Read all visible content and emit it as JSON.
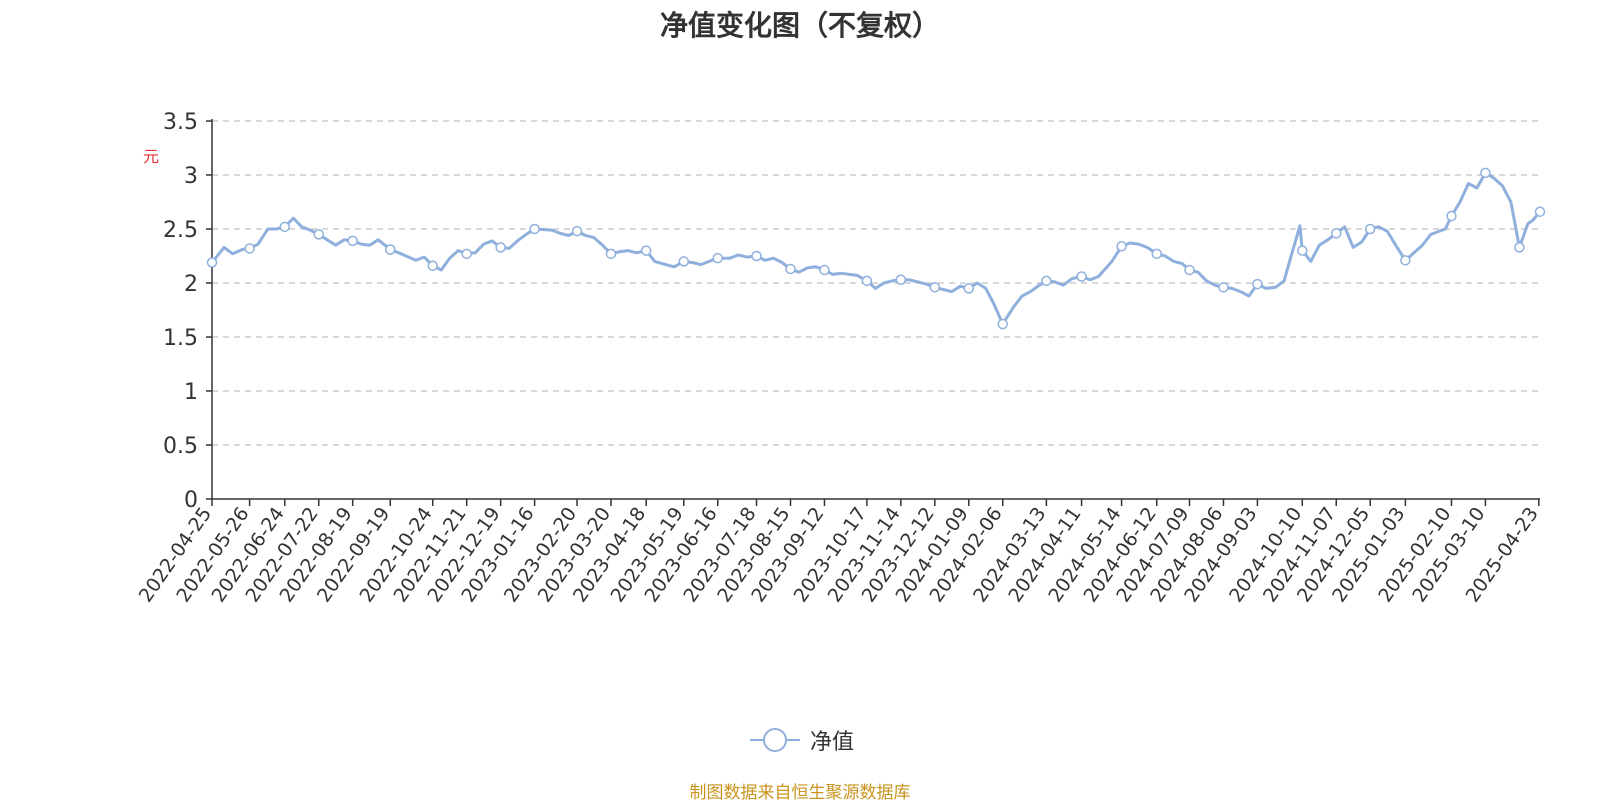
{
  "chart_data": {
    "type": "line",
    "title": "净值变化图（不复权）",
    "ylabel": "元",
    "xlabel": "",
    "ylim": [
      0,
      3.5
    ],
    "yticks": [
      "0",
      "0.5",
      "1",
      "1.5",
      "2",
      "2.5",
      "3",
      "3.5"
    ],
    "grid": "horizontal-dashed",
    "legend_position": "bottom-center",
    "x_range": [
      "2022-04-25",
      "2025-04-24"
    ],
    "categories": [
      "2022-04-25",
      "2022-05-26",
      "2022-06-24",
      "2022-07-22",
      "2022-08-19",
      "2022-09-19",
      "2022-10-24",
      "2022-11-21",
      "2022-12-19",
      "2023-01-16",
      "2023-02-20",
      "2023-03-20",
      "2023-04-18",
      "2023-05-19",
      "2023-06-16",
      "2023-07-18",
      "2023-08-15",
      "2023-09-12",
      "2023-10-17",
      "2023-11-14",
      "2023-12-12",
      "2024-01-09",
      "2024-02-06",
      "2024-03-13",
      "2024-04-11",
      "2024-05-14",
      "2024-06-12",
      "2024-07-09",
      "2024-08-06",
      "2024-09-03",
      "2024-10-10",
      "2024-11-07",
      "2024-12-05",
      "2025-01-03",
      "2025-02-10",
      "2025-03-10",
      "2025-04-23"
    ],
    "series": [
      {
        "name": "净值",
        "color": "#8fb0dc",
        "points": [
          [
            "2022-04-25",
            2.19
          ],
          [
            "2022-05-05",
            2.33
          ],
          [
            "2022-05-12",
            2.27
          ],
          [
            "2022-05-20",
            2.31
          ],
          [
            "2022-05-26",
            2.32
          ],
          [
            "2022-06-02",
            2.36
          ],
          [
            "2022-06-10",
            2.5
          ],
          [
            "2022-06-17",
            2.5
          ],
          [
            "2022-06-24",
            2.52
          ],
          [
            "2022-07-01",
            2.6
          ],
          [
            "2022-07-08",
            2.52
          ],
          [
            "2022-07-15",
            2.49
          ],
          [
            "2022-07-22",
            2.45
          ],
          [
            "2022-07-29",
            2.4
          ],
          [
            "2022-08-05",
            2.35
          ],
          [
            "2022-08-12",
            2.4
          ],
          [
            "2022-08-19",
            2.39
          ],
          [
            "2022-08-26",
            2.36
          ],
          [
            "2022-09-02",
            2.35
          ],
          [
            "2022-09-09",
            2.4
          ],
          [
            "2022-09-19",
            2.31
          ],
          [
            "2022-09-26",
            2.28
          ],
          [
            "2022-10-10",
            2.21
          ],
          [
            "2022-10-17",
            2.24
          ],
          [
            "2022-10-24",
            2.16
          ],
          [
            "2022-10-31",
            2.12
          ],
          [
            "2022-11-07",
            2.23
          ],
          [
            "2022-11-14",
            2.3
          ],
          [
            "2022-11-21",
            2.27
          ],
          [
            "2022-11-28",
            2.28
          ],
          [
            "2022-12-05",
            2.36
          ],
          [
            "2022-12-12",
            2.39
          ],
          [
            "2022-12-19",
            2.33
          ],
          [
            "2022-12-26",
            2.32
          ],
          [
            "2023-01-03",
            2.4
          ],
          [
            "2023-01-09",
            2.45
          ],
          [
            "2023-01-16",
            2.5
          ],
          [
            "2023-01-30",
            2.49
          ],
          [
            "2023-02-06",
            2.46
          ],
          [
            "2023-02-13",
            2.44
          ],
          [
            "2023-02-20",
            2.48
          ],
          [
            "2023-02-27",
            2.44
          ],
          [
            "2023-03-06",
            2.42
          ],
          [
            "2023-03-13",
            2.35
          ],
          [
            "2023-03-20",
            2.27
          ],
          [
            "2023-03-27",
            2.29
          ],
          [
            "2023-04-03",
            2.3
          ],
          [
            "2023-04-10",
            2.28
          ],
          [
            "2023-04-18",
            2.3
          ],
          [
            "2023-04-25",
            2.2
          ],
          [
            "2023-05-04",
            2.17
          ],
          [
            "2023-05-11",
            2.15
          ],
          [
            "2023-05-19",
            2.2
          ],
          [
            "2023-05-26",
            2.19
          ],
          [
            "2023-06-02",
            2.17
          ],
          [
            "2023-06-09",
            2.2
          ],
          [
            "2023-06-16",
            2.23
          ],
          [
            "2023-06-26",
            2.23
          ],
          [
            "2023-07-03",
            2.26
          ],
          [
            "2023-07-10",
            2.24
          ],
          [
            "2023-07-18",
            2.25
          ],
          [
            "2023-07-25",
            2.21
          ],
          [
            "2023-08-01",
            2.23
          ],
          [
            "2023-08-08",
            2.19
          ],
          [
            "2023-08-15",
            2.13
          ],
          [
            "2023-08-22",
            2.1
          ],
          [
            "2023-08-29",
            2.14
          ],
          [
            "2023-09-05",
            2.15
          ],
          [
            "2023-09-12",
            2.12
          ],
          [
            "2023-09-19",
            2.08
          ],
          [
            "2023-09-26",
            2.09
          ],
          [
            "2023-10-09",
            2.07
          ],
          [
            "2023-10-17",
            2.02
          ],
          [
            "2023-10-24",
            1.95
          ],
          [
            "2023-10-31",
            2.0
          ],
          [
            "2023-11-07",
            2.02
          ],
          [
            "2023-11-14",
            2.03
          ],
          [
            "2023-11-21",
            2.03
          ],
          [
            "2023-11-28",
            2.01
          ],
          [
            "2023-12-05",
            1.99
          ],
          [
            "2023-12-12",
            1.96
          ],
          [
            "2023-12-19",
            1.94
          ],
          [
            "2023-12-26",
            1.92
          ],
          [
            "2024-01-02",
            1.97
          ],
          [
            "2024-01-09",
            1.95
          ],
          [
            "2024-01-16",
            2.0
          ],
          [
            "2024-01-23",
            1.95
          ],
          [
            "2024-01-30",
            1.8
          ],
          [
            "2024-02-06",
            1.62
          ],
          [
            "2024-02-15",
            1.78
          ],
          [
            "2024-02-22",
            1.88
          ],
          [
            "2024-02-29",
            1.92
          ],
          [
            "2024-03-06",
            1.97
          ],
          [
            "2024-03-13",
            2.02
          ],
          [
            "2024-03-20",
            2.01
          ],
          [
            "2024-03-27",
            1.98
          ],
          [
            "2024-04-03",
            2.04
          ],
          [
            "2024-04-11",
            2.06
          ],
          [
            "2024-04-18",
            2.03
          ],
          [
            "2024-04-25",
            2.06
          ],
          [
            "2024-05-06",
            2.2
          ],
          [
            "2024-05-14",
            2.34
          ],
          [
            "2024-05-21",
            2.37
          ],
          [
            "2024-05-28",
            2.36
          ],
          [
            "2024-06-04",
            2.33
          ],
          [
            "2024-06-12",
            2.27
          ],
          [
            "2024-06-19",
            2.25
          ],
          [
            "2024-06-26",
            2.2
          ],
          [
            "2024-07-03",
            2.18
          ],
          [
            "2024-07-09",
            2.12
          ],
          [
            "2024-07-16",
            2.1
          ],
          [
            "2024-07-23",
            2.02
          ],
          [
            "2024-07-30",
            1.98
          ],
          [
            "2024-08-06",
            1.96
          ],
          [
            "2024-08-13",
            1.95
          ],
          [
            "2024-08-20",
            1.92
          ],
          [
            "2024-08-27",
            1.88
          ],
          [
            "2024-09-03",
            1.99
          ],
          [
            "2024-09-10",
            1.95
          ],
          [
            "2024-09-18",
            1.96
          ],
          [
            "2024-09-25",
            2.02
          ],
          [
            "2024-09-30",
            2.22
          ],
          [
            "2024-10-08",
            2.53
          ],
          [
            "2024-10-10",
            2.3
          ],
          [
            "2024-10-17",
            2.2
          ],
          [
            "2024-10-24",
            2.35
          ],
          [
            "2024-10-31",
            2.4
          ],
          [
            "2024-11-07",
            2.46
          ],
          [
            "2024-11-14",
            2.52
          ],
          [
            "2024-11-21",
            2.33
          ],
          [
            "2024-11-28",
            2.38
          ],
          [
            "2024-12-05",
            2.5
          ],
          [
            "2024-12-12",
            2.52
          ],
          [
            "2024-12-19",
            2.48
          ],
          [
            "2024-12-26",
            2.35
          ],
          [
            "2025-01-03",
            2.21
          ],
          [
            "2025-01-10",
            2.28
          ],
          [
            "2025-01-17",
            2.35
          ],
          [
            "2025-01-24",
            2.45
          ],
          [
            "2025-02-05",
            2.5
          ],
          [
            "2025-02-10",
            2.62
          ],
          [
            "2025-02-17",
            2.75
          ],
          [
            "2025-02-24",
            2.92
          ],
          [
            "2025-03-03",
            2.88
          ],
          [
            "2025-03-10",
            3.02
          ],
          [
            "2025-03-17",
            2.97
          ],
          [
            "2025-03-24",
            2.9
          ],
          [
            "2025-03-31",
            2.75
          ],
          [
            "2025-04-07",
            2.33
          ],
          [
            "2025-04-14",
            2.55
          ],
          [
            "2025-04-18",
            2.58
          ],
          [
            "2025-04-24",
            2.66
          ]
        ],
        "markers": [
          "2022-04-25",
          "2022-05-26",
          "2022-06-24",
          "2022-07-22",
          "2022-08-19",
          "2022-09-19",
          "2022-10-24",
          "2022-11-21",
          "2022-12-19",
          "2023-01-16",
          "2023-02-20",
          "2023-03-20",
          "2023-04-18",
          "2023-05-19",
          "2023-06-16",
          "2023-07-18",
          "2023-08-15",
          "2023-09-12",
          "2023-10-17",
          "2023-11-14",
          "2023-12-12",
          "2024-01-09",
          "2024-02-06",
          "2024-03-13",
          "2024-04-11",
          "2024-05-14",
          "2024-06-12",
          "2024-07-09",
          "2024-08-06",
          "2024-09-03",
          "2024-10-10",
          "2024-11-07",
          "2024-12-05",
          "2025-01-03",
          "2025-02-10",
          "2025-03-10",
          "2025-04-07",
          "2025-04-24"
        ]
      }
    ]
  },
  "legend": {
    "label": "净值"
  },
  "footer": {
    "source": "制图数据来自恒生聚源数据库",
    "source_color": "#c9941f"
  }
}
